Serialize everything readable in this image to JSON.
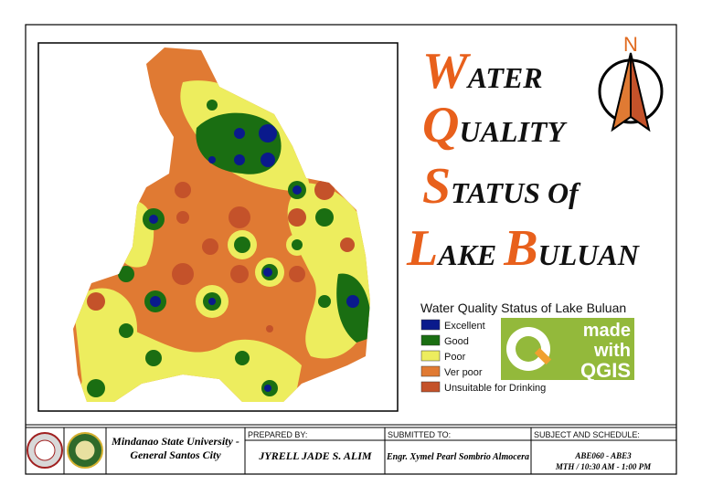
{
  "title": {
    "lines": [
      {
        "initial": "W",
        "rest": "ATER"
      },
      {
        "initial": "Q",
        "rest": "UALITY"
      },
      {
        "initial": "S",
        "rest": "TATUS Of"
      },
      {
        "initial": "L",
        "rest": "AKE",
        "initial2": "B",
        "rest2": "ULUAN"
      }
    ]
  },
  "north": "N",
  "legend": {
    "title": "Water Quality Status of Lake Buluan",
    "items": [
      {
        "label": "Excellent",
        "color": "#0a1a8c"
      },
      {
        "label": "Good",
        "color": "#1a6e12"
      },
      {
        "label": "Poor",
        "color": "#eded5e"
      },
      {
        "label": "Ver poor",
        "color": "#e07a33"
      },
      {
        "label": "Unsuitable for Drinking",
        "color": "#c4522a"
      }
    ]
  },
  "badge": {
    "line1": "made",
    "line2": "with",
    "line3": "QGIS"
  },
  "footer": {
    "institution": "Mindanao State University - General Santos City",
    "prepared_label": "PREPARED BY:",
    "prepared_name": "JYRELL JADE S. ALIM",
    "submitted_label": "SUBMITTED TO:",
    "submitted_name": "Engr. Xymel Pearl Sombrio Almocera",
    "subject_label": "SUBJECT AND SCHEDULE:",
    "subject": "ABE060 - ABE3",
    "schedule": "MTH / 10:30 AM - 1:00 PM"
  }
}
